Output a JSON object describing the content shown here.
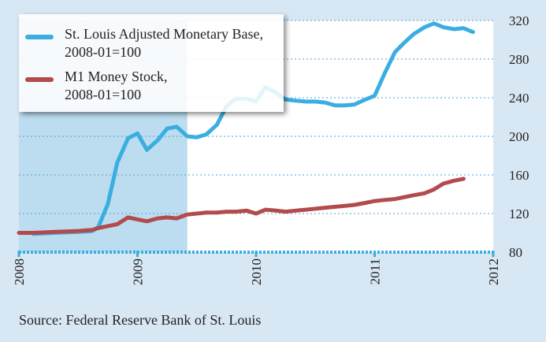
{
  "chart_data": {
    "type": "line",
    "title": "",
    "xlabel": "",
    "ylabel": "",
    "xlim": [
      2008.0,
      2012.0
    ],
    "ylim": [
      80,
      320
    ],
    "x_ticks": [
      2008,
      2009,
      2010,
      2011,
      2012
    ],
    "x_tick_labels": [
      "2008",
      "2009",
      "2010",
      "2011",
      "2012"
    ],
    "y_ticks": [
      80,
      120,
      160,
      200,
      240,
      280,
      320
    ],
    "y_tick_labels": [
      "80",
      "120",
      "160",
      "200",
      "240",
      "280",
      "320"
    ],
    "grid": true,
    "legend_position": "top-left",
    "shaded_region": {
      "x_start": 2008.0,
      "x_end": 2009.42,
      "color": "#bcdcf0"
    },
    "series": [
      {
        "name": "St. Louis Adjusted Monetary Base,",
        "name_line2": "2008-01=100",
        "color": "#3aaee0",
        "x": [
          2008.12,
          2008.3,
          2008.5,
          2008.62,
          2008.67,
          2008.75,
          2008.83,
          2008.92,
          2009.0,
          2009.08,
          2009.17,
          2009.25,
          2009.33,
          2009.42,
          2009.5,
          2009.58,
          2009.67,
          2009.75,
          2009.83,
          2009.92,
          2010.0,
          2010.08,
          2010.17,
          2010.25,
          2010.33,
          2010.42,
          2010.5,
          2010.58,
          2010.67,
          2010.75,
          2010.83,
          2010.92,
          2011.0,
          2011.08,
          2011.17,
          2011.25,
          2011.33,
          2011.42,
          2011.5,
          2011.58,
          2011.67,
          2011.75,
          2011.83
        ],
        "y": [
          99,
          100,
          101,
          102,
          106,
          130,
          173,
          198,
          203,
          186,
          196,
          208,
          210,
          200,
          199,
          202,
          212,
          231,
          239,
          239,
          236,
          251,
          245,
          238,
          237,
          236,
          236,
          235,
          232,
          232,
          233,
          238,
          242,
          264,
          287,
          297,
          306,
          313,
          317,
          313,
          311,
          312,
          308
        ]
      },
      {
        "name": "M1 Money Stock,",
        "name_line2": "2008-01=100",
        "color": "#b34a4c",
        "x": [
          2008.0,
          2008.12,
          2008.3,
          2008.5,
          2008.62,
          2008.67,
          2008.75,
          2008.83,
          2008.92,
          2009.0,
          2009.08,
          2009.17,
          2009.25,
          2009.33,
          2009.42,
          2009.5,
          2009.58,
          2009.67,
          2009.75,
          2009.83,
          2009.92,
          2010.0,
          2010.08,
          2010.17,
          2010.25,
          2010.33,
          2010.42,
          2010.5,
          2010.58,
          2010.67,
          2010.75,
          2010.83,
          2010.92,
          2011.0,
          2011.08,
          2011.17,
          2011.25,
          2011.33,
          2011.42,
          2011.5,
          2011.58,
          2011.67,
          2011.75
        ],
        "y": [
          100,
          100,
          101,
          102,
          103,
          105,
          107,
          109,
          116,
          114,
          112,
          115,
          116,
          115,
          119,
          120,
          121,
          121,
          122,
          122,
          123,
          120,
          124,
          123,
          122,
          123,
          124,
          125,
          126,
          127,
          128,
          129,
          131,
          133,
          134,
          135,
          137,
          139,
          141,
          145,
          151,
          154,
          156
        ]
      }
    ]
  },
  "source": "Source: Federal Reserve Bank of St. Louis"
}
